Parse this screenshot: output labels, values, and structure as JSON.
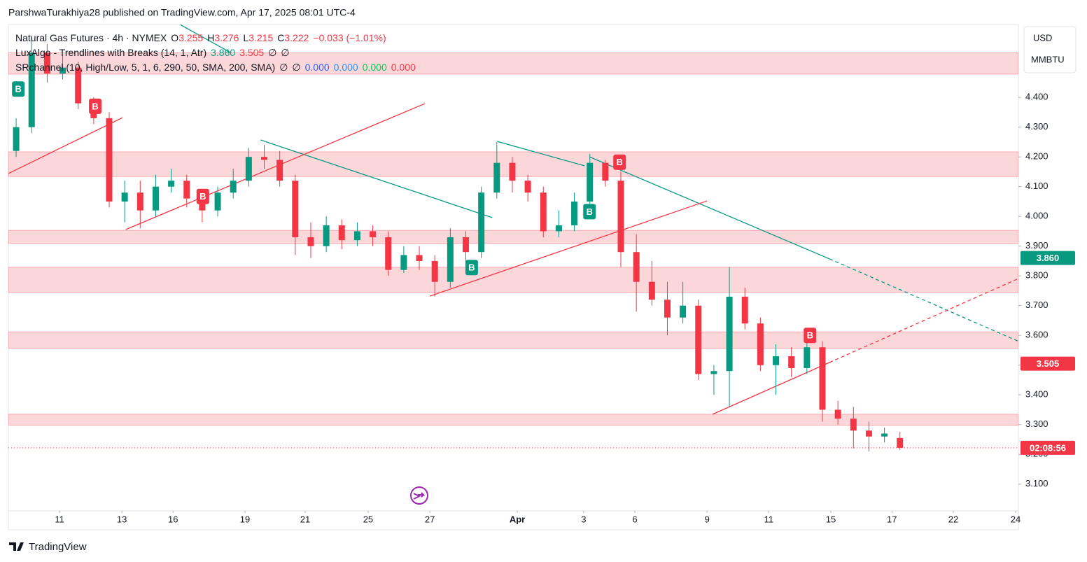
{
  "header": {
    "published": "ParshwaTurakhiya28 published on TradingView.com, Apr 17, 2025 08:01 UTC-4",
    "brand": "TradingView"
  },
  "legend": {
    "symbol": "Natural Gas Futures · 4h · NYMEX",
    "ohlc": [
      {
        "key": "O",
        "value": "3.255"
      },
      {
        "key": "H",
        "value": "3.276"
      },
      {
        "key": "L",
        "value": "3.215"
      },
      {
        "key": "C",
        "value": "3.222"
      }
    ],
    "change": "−0.033 (−1.01%)",
    "indicators": [
      {
        "name": "LuxAlgo - Trendlines with Breaks (14, 1, Atr)",
        "items": [
          {
            "text": "3.860",
            "color": "#089981"
          },
          {
            "text": "3.505",
            "color": "#f23645"
          },
          {
            "text": "∅",
            "color": "#131722"
          },
          {
            "text": "∅",
            "color": "#131722"
          }
        ]
      },
      {
        "name": "SRchannel (10, High/Low, 5, 1, 6, 290, 50, SMA, 200, SMA)",
        "items": [
          {
            "text": "∅",
            "color": "#131722"
          },
          {
            "text": "∅",
            "color": "#131722"
          },
          {
            "text": "0.000",
            "color": "#2962ff"
          },
          {
            "text": "0.000",
            "color": "#2196f3"
          },
          {
            "text": "0.000",
            "color": "#00c853"
          },
          {
            "text": "0.000",
            "color": "#f23645"
          }
        ]
      }
    ]
  },
  "currency": "USD",
  "unit": "MMBTU",
  "chart_data": {
    "type": "candlestick",
    "up_color": "#089981",
    "down_color": "#f23645",
    "grid": false,
    "xlim": [
      0,
      32.57
    ],
    "ylim": [
      3.01,
      4.645
    ],
    "xticks": [
      {
        "value": 1.65,
        "label": "11"
      },
      {
        "value": 3.66,
        "label": "13"
      },
      {
        "value": 5.31,
        "label": "16"
      },
      {
        "value": 7.63,
        "label": "19"
      },
      {
        "value": 9.57,
        "label": "21"
      },
      {
        "value": 11.6,
        "label": "25"
      },
      {
        "value": 13.59,
        "label": "27"
      },
      {
        "value": 16.41,
        "label": "Apr"
      },
      {
        "value": 18.55,
        "label": "3"
      },
      {
        "value": 20.2,
        "label": "6"
      },
      {
        "value": 22.53,
        "label": "9"
      },
      {
        "value": 24.52,
        "label": "11"
      },
      {
        "value": 26.52,
        "label": "15"
      },
      {
        "value": 28.49,
        "label": "17"
      },
      {
        "value": 30.47,
        "label": "22"
      },
      {
        "value": 32.48,
        "label": "24"
      }
    ],
    "yticks": [
      {
        "value": 3.1,
        "label": "3.100"
      },
      {
        "value": 3.2,
        "label": "3.200"
      },
      {
        "value": 3.3,
        "label": "3.300"
      },
      {
        "value": 3.4,
        "label": "3.400"
      },
      {
        "value": 3.5,
        "label": "3.500"
      },
      {
        "value": 3.6,
        "label": "3.600"
      },
      {
        "value": 3.7,
        "label": "3.700"
      },
      {
        "value": 3.8,
        "label": "3.800"
      },
      {
        "value": 3.9,
        "label": "3.900"
      },
      {
        "value": 4,
        "label": "4.000"
      },
      {
        "value": 4.1,
        "label": "4.100"
      },
      {
        "value": 4.2,
        "label": "4.200"
      },
      {
        "value": 4.3,
        "label": "4.300"
      },
      {
        "value": 4.4,
        "label": "4.400"
      }
    ],
    "x": [
      0.25,
      0.75,
      1.25,
      1.75,
      2.25,
      2.75,
      3.25,
      3.75,
      4.25,
      4.75,
      5.25,
      5.75,
      6.25,
      6.75,
      7.25,
      7.75,
      8.25,
      8.75,
      9.25,
      9.75,
      10.25,
      10.75,
      11.25,
      11.75,
      12.25,
      12.75,
      13.25,
      13.75,
      14.25,
      14.75,
      15.25,
      15.75,
      16.25,
      16.75,
      17.25,
      17.75,
      18.25,
      18.75,
      19.25,
      19.75,
      20.25,
      20.75,
      21.25,
      21.75,
      22.25,
      22.75,
      23.25,
      23.75,
      24.25,
      24.75,
      25.25,
      25.75,
      26.25,
      26.75,
      27.25,
      27.75,
      28.25,
      28.75
    ],
    "open": [
      4.22,
      4.3,
      4.55,
      4.48,
      4.5,
      4.38,
      4.33,
      4.05,
      4.08,
      4.02,
      4.1,
      4.12,
      4.06,
      4.02,
      4.08,
      4.12,
      4.2,
      4.19,
      4.12,
      3.93,
      3.9,
      3.97,
      3.92,
      3.95,
      3.93,
      3.82,
      3.87,
      3.85,
      3.78,
      3.93,
      3.88,
      4.08,
      4.18,
      4.12,
      4.08,
      3.95,
      3.97,
      4.05,
      4.18,
      4.12,
      3.88,
      3.78,
      3.72,
      3.66,
      3.7,
      3.47,
      3.48,
      3.73,
      3.64,
      3.5,
      3.53,
      3.49,
      3.56,
      3.35,
      3.32,
      3.28,
      3.26,
      3.255
    ],
    "high": [
      4.33,
      4.6,
      4.58,
      4.54,
      4.52,
      4.4,
      4.35,
      4.12,
      4.12,
      4.14,
      4.16,
      4.14,
      4.08,
      4.1,
      4.16,
      4.23,
      4.24,
      4.22,
      4.14,
      3.98,
      4.0,
      3.99,
      3.98,
      3.97,
      3.95,
      3.9,
      3.9,
      3.87,
      3.96,
      3.95,
      4.1,
      4.25,
      4.2,
      4.14,
      4.1,
      4.02,
      4.08,
      4.21,
      4.19,
      4.15,
      3.94,
      3.85,
      3.78,
      3.78,
      3.72,
      3.5,
      3.83,
      3.76,
      3.66,
      3.57,
      3.56,
      3.59,
      3.58,
      3.38,
      3.36,
      3.31,
      3.29,
      3.276
    ],
    "low": [
      4.2,
      4.28,
      4.45,
      4.46,
      4.36,
      4.31,
      4.03,
      3.98,
      3.96,
      4.0,
      4.08,
      4.03,
      3.98,
      4.0,
      4.06,
      4.1,
      4.16,
      4.1,
      3.87,
      3.86,
      3.88,
      3.89,
      3.9,
      3.9,
      3.8,
      3.81,
      3.82,
      3.73,
      3.76,
      3.85,
      3.86,
      4.06,
      4.08,
      4.05,
      3.93,
      3.93,
      3.95,
      4.03,
      4.1,
      3.83,
      3.68,
      3.7,
      3.6,
      3.64,
      3.45,
      3.4,
      3.36,
      3.62,
      3.48,
      3.4,
      3.46,
      3.47,
      3.31,
      3.3,
      3.22,
      3.21,
      3.24,
      3.215
    ],
    "close": [
      4.3,
      4.55,
      4.48,
      4.5,
      4.38,
      4.33,
      4.05,
      4.08,
      4.02,
      4.1,
      4.12,
      4.06,
      4.02,
      4.08,
      4.12,
      4.2,
      4.19,
      4.12,
      3.93,
      3.9,
      3.97,
      3.92,
      3.95,
      3.93,
      3.82,
      3.87,
      3.85,
      3.78,
      3.93,
      3.88,
      4.08,
      4.18,
      4.12,
      4.08,
      3.95,
      3.97,
      4.05,
      4.18,
      4.12,
      3.88,
      3.78,
      3.72,
      3.66,
      3.7,
      3.47,
      3.48,
      3.73,
      3.64,
      3.5,
      3.53,
      3.49,
      3.56,
      3.35,
      3.32,
      3.28,
      3.26,
      3.27,
      3.222
    ],
    "zones": [
      [
        4.478,
        4.55
      ],
      [
        4.134,
        4.217
      ],
      [
        3.909,
        3.953
      ],
      [
        3.744,
        3.829
      ],
      [
        3.556,
        3.612
      ],
      [
        3.298,
        3.335
      ]
    ],
    "zone_color": "#f23645",
    "trendlines": [
      {
        "color": "#089981",
        "dashed": false,
        "points": [
          [
            5.55,
            4.644
          ],
          [
            7.18,
            4.55
          ]
        ]
      },
      {
        "color": "#089981",
        "dashed": false,
        "points": [
          [
            8.13,
            4.257
          ],
          [
            15.6,
            3.996
          ]
        ]
      },
      {
        "color": "#089981",
        "dashed": false,
        "points": [
          [
            15.76,
            4.252
          ],
          [
            18.58,
            4.17
          ]
        ]
      },
      {
        "color": "#089981",
        "dashed": false,
        "points": [
          [
            18.74,
            4.2
          ],
          [
            26.48,
            3.857
          ]
        ]
      },
      {
        "color": "#089981",
        "dashed": true,
        "points": [
          [
            26.48,
            3.857
          ],
          [
            32.57,
            3.58
          ]
        ]
      },
      {
        "color": "#f23645",
        "dashed": false,
        "points": [
          [
            0,
            4.144
          ],
          [
            3.68,
            4.332
          ]
        ]
      },
      {
        "color": "#f23645",
        "dashed": false,
        "points": [
          [
            3.79,
            3.956
          ],
          [
            13.43,
            4.379
          ]
        ]
      },
      {
        "color": "#f23645",
        "dashed": false,
        "points": [
          [
            13.59,
            3.732
          ],
          [
            22.53,
            4.052
          ]
        ]
      },
      {
        "color": "#f23645",
        "dashed": false,
        "points": [
          [
            22.71,
            3.335
          ],
          [
            26.48,
            3.509
          ]
        ]
      },
      {
        "color": "#f23645",
        "dashed": true,
        "points": [
          [
            26.48,
            3.509
          ],
          [
            32.57,
            3.791
          ]
        ]
      }
    ],
    "signals": [
      {
        "label": "B",
        "color": "#089981",
        "x": 0.32,
        "y": 4.428
      },
      {
        "label": "B",
        "color": "#089981",
        "x": 14.94,
        "y": 3.828
      },
      {
        "label": "B",
        "color": "#089981",
        "x": 18.74,
        "y": 4.016
      },
      {
        "label": "B",
        "color": "#f23645",
        "x": 2.8,
        "y": 4.37
      },
      {
        "label": "B",
        "color": "#f23645",
        "x": 6.27,
        "y": 4.067
      },
      {
        "label": "B",
        "color": "#f23645",
        "x": 19.71,
        "y": 4.182
      },
      {
        "label": "B",
        "color": "#f23645",
        "x": 25.85,
        "y": 3.6
      }
    ],
    "price_labels": [
      {
        "value": 3.86,
        "label": "3.860",
        "color": "#089981"
      },
      {
        "value": 3.505,
        "label": "3.505",
        "color": "#f23645"
      },
      {
        "value": 3.222,
        "label": "02:08:56",
        "color": "#f23645"
      }
    ],
    "last_price": 3.222
  }
}
